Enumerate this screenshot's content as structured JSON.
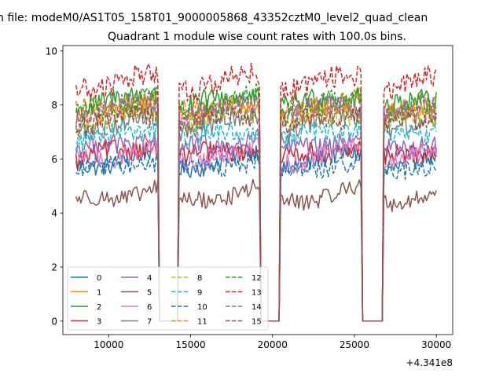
{
  "chart_data": {
    "type": "line",
    "suptitle": "n file: modeM0/AS1T05_158T01_9000005868_43352cztM0_level2_quad_clean",
    "title": "Quadrant 1 module wise count rates with 100.0s bins.",
    "xlabel": "",
    "ylabel": "",
    "x_offset_label": "+4.341e8",
    "xlim": [
      7200,
      31000
    ],
    "ylim": [
      -0.5,
      10.2
    ],
    "x_ticks": [
      10000,
      15000,
      20000,
      25000,
      30000
    ],
    "x_tick_labels": [
      "10000",
      "15000",
      "20000",
      "25000",
      "30000"
    ],
    "y_ticks": [
      0,
      2,
      4,
      6,
      8,
      10
    ],
    "y_tick_labels": [
      "0",
      "2",
      "4",
      "6",
      "8",
      "10"
    ],
    "grid": false,
    "legend_position": "lower-left",
    "legend_columns": 4,
    "bin_size_s": 100,
    "data_start": 8000,
    "data_end": 30000,
    "gaps": [
      [
        13000,
        14300
      ],
      [
        19200,
        20500
      ],
      [
        25400,
        26800
      ]
    ],
    "gap_value": 0,
    "series": [
      {
        "name": "0",
        "color": "#1f77b4",
        "dash": "solid",
        "level": 5.7
      },
      {
        "name": "1",
        "color": "#ff7f0e",
        "dash": "solid",
        "level": 7.6
      },
      {
        "name": "2",
        "color": "#2ca02c",
        "dash": "solid",
        "level": 7.9
      },
      {
        "name": "3",
        "color": "#d62728",
        "dash": "solid",
        "level": 6.0
      },
      {
        "name": "4",
        "color": "#9467bd",
        "dash": "solid",
        "level": 6.3
      },
      {
        "name": "5",
        "color": "#8c564b",
        "dash": "solid",
        "level": 4.4
      },
      {
        "name": "6",
        "color": "#e377c2",
        "dash": "solid",
        "level": 5.9
      },
      {
        "name": "7",
        "color": "#7f7f7f",
        "dash": "solid",
        "level": 7.1
      },
      {
        "name": "8",
        "color": "#bcbd22",
        "dash": "dashed",
        "level": 7.3
      },
      {
        "name": "9",
        "color": "#17becf",
        "dash": "dashed",
        "level": 6.7
      },
      {
        "name": "10",
        "color": "#1f77b4",
        "dash": "dashed",
        "level": 5.5
      },
      {
        "name": "11",
        "color": "#ff7f0e",
        "dash": "dashed",
        "level": 7.7
      },
      {
        "name": "12",
        "color": "#2ca02c",
        "dash": "dashed",
        "level": 7.8
      },
      {
        "name": "13",
        "color": "#d62728",
        "dash": "dashed",
        "level": 8.6
      },
      {
        "name": "14",
        "color": "#9467bd",
        "dash": "dashed",
        "level": 7.6
      },
      {
        "name": "15",
        "color": "#8c564b",
        "dash": "dashed",
        "level": 7.2
      }
    ]
  }
}
